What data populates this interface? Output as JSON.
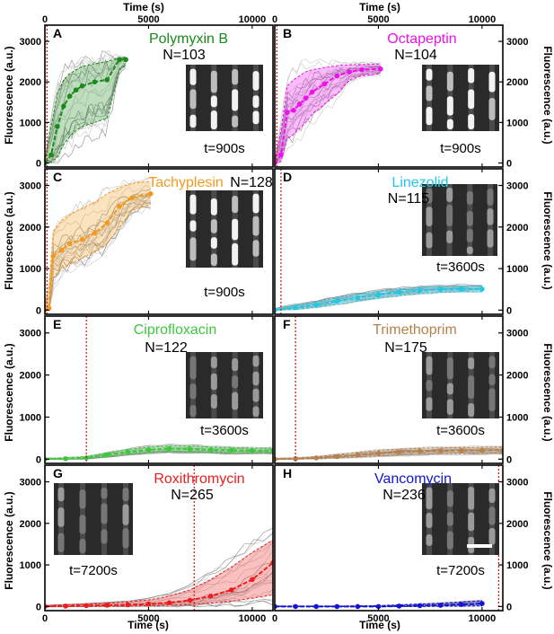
{
  "figure": {
    "x_label": "Time (s)",
    "y_label": "Fluorescence (a.u.)"
  },
  "chart_data": [
    {
      "type": "line",
      "panel": "A",
      "title": "Polymyxin B",
      "n_label": "N=103",
      "color": "#1a8a1a",
      "inset_label": "t=900s",
      "xlim": [
        0,
        11000
      ],
      "ylim": [
        -100,
        3400
      ],
      "treatment_time": 100,
      "x": [
        0,
        300,
        600,
        900,
        1200,
        1500,
        1800,
        2400,
        3000,
        3600,
        3900
      ],
      "series": [
        {
          "role": "mean",
          "values": [
            0,
            200,
            900,
            1400,
            1650,
            1800,
            1900,
            2000,
            2050,
            2550,
            2550
          ]
        },
        {
          "role": "upper",
          "values": [
            50,
            900,
            1700,
            2050,
            2200,
            2300,
            2380,
            2450,
            2500,
            2600,
            2600
          ]
        },
        {
          "role": "lower",
          "values": [
            0,
            20,
            150,
            450,
            650,
            800,
            900,
            1000,
            1100,
            2300,
            2400
          ]
        }
      ],
      "y_ticks": [
        "0",
        "1000",
        "2000",
        "3000"
      ]
    },
    {
      "type": "line",
      "panel": "B",
      "title": "Octapeptin",
      "n_label": "N=104",
      "color": "#ee10ee",
      "inset_label": "t=900s",
      "xlim": [
        0,
        11000
      ],
      "ylim": [
        -100,
        3400
      ],
      "treatment_time": 100,
      "x": [
        0,
        300,
        600,
        900,
        1200,
        1500,
        1800,
        2400,
        3000,
        3600,
        4200,
        5100
      ],
      "series": [
        {
          "role": "mean",
          "values": [
            0,
            200,
            1250,
            1300,
            1450,
            1600,
            1750,
            1950,
            2150,
            2250,
            2300,
            2320
          ]
        },
        {
          "role": "upper",
          "values": [
            50,
            800,
            1900,
            2050,
            2150,
            2250,
            2300,
            2350,
            2400,
            2420,
            2430,
            2440
          ]
        },
        {
          "role": "lower",
          "values": [
            0,
            30,
            600,
            700,
            850,
            1000,
            1200,
            1450,
            1700,
            2050,
            2150,
            2200
          ]
        }
      ],
      "y_ticks": [
        "0",
        "1000",
        "2000",
        "3000"
      ]
    },
    {
      "type": "line",
      "panel": "C",
      "title": "Tachyplesin",
      "n_label": "N=128",
      "color": "#f39a1c",
      "inset_label": "t=900s",
      "xlim": [
        0,
        11000
      ],
      "ylim": [
        -100,
        3400
      ],
      "treatment_time": 100,
      "x": [
        0,
        200,
        400,
        800,
        1200,
        1800,
        2400,
        3000,
        3600,
        4200,
        5100
      ],
      "series": [
        {
          "role": "mean",
          "values": [
            0,
            50,
            1300,
            1450,
            1600,
            1700,
            1850,
            2100,
            2500,
            2700,
            2800
          ]
        },
        {
          "role": "upper",
          "values": [
            80,
            500,
            1900,
            2150,
            2300,
            2450,
            2600,
            2800,
            2950,
            3050,
            3100
          ]
        },
        {
          "role": "lower",
          "values": [
            0,
            10,
            800,
            1000,
            1100,
            1250,
            1400,
            1600,
            2000,
            2400,
            2550
          ]
        }
      ],
      "y_ticks": [
        "0",
        "1000",
        "2000",
        "3000"
      ]
    },
    {
      "type": "line",
      "panel": "D",
      "title": "Linezolid",
      "n_label": "N=115",
      "color": "#1ec8e6",
      "inset_label": "t=3600s",
      "xlim": [
        0,
        11000
      ],
      "ylim": [
        -100,
        3400
      ],
      "treatment_time": 300,
      "x": [
        0,
        1000,
        2000,
        3000,
        4000,
        5000,
        6000,
        7000,
        8000,
        9000,
        10000
      ],
      "series": [
        {
          "role": "mean",
          "values": [
            0,
            60,
            130,
            220,
            300,
            370,
            430,
            480,
            500,
            510,
            510
          ]
        },
        {
          "role": "upper",
          "values": [
            30,
            120,
            200,
            300,
            380,
            450,
            510,
            550,
            570,
            580,
            580
          ]
        },
        {
          "role": "lower",
          "values": [
            0,
            20,
            70,
            140,
            220,
            290,
            350,
            400,
            430,
            440,
            440
          ]
        }
      ],
      "y_ticks": [
        "0",
        "1000",
        "2000",
        "3000"
      ]
    },
    {
      "type": "line",
      "panel": "E",
      "title": "Ciprofloxacin",
      "n_label": "N=122",
      "color": "#3cc83c",
      "inset_label": "t=3600s",
      "xlim": [
        0,
        11000
      ],
      "ylim": [
        -100,
        3400
      ],
      "treatment_time": 2000,
      "x": [
        0,
        1000,
        2000,
        3000,
        4000,
        5000,
        6000,
        7000,
        8000,
        9000,
        10000,
        11000
      ],
      "series": [
        {
          "role": "mean",
          "values": [
            0,
            10,
            30,
            100,
            170,
            220,
            250,
            240,
            220,
            210,
            200,
            200
          ]
        },
        {
          "role": "upper",
          "values": [
            20,
            30,
            60,
            150,
            230,
            290,
            320,
            310,
            290,
            270,
            260,
            260
          ]
        },
        {
          "role": "lower",
          "values": [
            0,
            0,
            10,
            60,
            120,
            160,
            180,
            170,
            160,
            150,
            150,
            150
          ]
        }
      ],
      "y_ticks": [
        "0",
        "1000",
        "2000",
        "3000"
      ]
    },
    {
      "type": "line",
      "panel": "F",
      "title": "Trimethoprim",
      "n_label": "N=175",
      "color": "#b8804a",
      "inset_label": "t=3600s",
      "xlim": [
        0,
        11000
      ],
      "ylim": [
        -100,
        3400
      ],
      "treatment_time": 1000,
      "x": [
        0,
        1000,
        2000,
        3000,
        4000,
        5000,
        6000,
        7000,
        8000,
        9000,
        10000,
        11000
      ],
      "series": [
        {
          "role": "mean",
          "values": [
            0,
            10,
            30,
            60,
            100,
            140,
            170,
            190,
            200,
            205,
            210,
            215
          ]
        },
        {
          "role": "upper",
          "values": [
            20,
            30,
            60,
            110,
            160,
            210,
            240,
            260,
            270,
            280,
            285,
            290
          ]
        },
        {
          "role": "lower",
          "values": [
            0,
            0,
            10,
            30,
            50,
            80,
            100,
            120,
            130,
            135,
            140,
            145
          ]
        }
      ],
      "y_ticks": [
        "0",
        "1000",
        "2000",
        "3000"
      ]
    },
    {
      "type": "line",
      "panel": "G",
      "title": "Roxithromycin",
      "n_label": "N=265",
      "color": "#ee1c1c",
      "inset_label": "t=7200s",
      "xlim": [
        0,
        11000
      ],
      "ylim": [
        -100,
        3400
      ],
      "treatment_time": 7200,
      "x": [
        0,
        1000,
        2000,
        3000,
        4000,
        5000,
        6000,
        7000,
        8000,
        9000,
        10000,
        11000
      ],
      "series": [
        {
          "role": "mean",
          "values": [
            0,
            10,
            20,
            30,
            40,
            60,
            90,
            150,
            250,
            400,
            650,
            1050
          ]
        },
        {
          "role": "upper",
          "values": [
            20,
            40,
            60,
            80,
            110,
            160,
            250,
            400,
            650,
            950,
            1300,
            1600
          ]
        },
        {
          "role": "lower",
          "values": [
            0,
            0,
            0,
            5,
            10,
            20,
            30,
            50,
            80,
            130,
            200,
            280
          ]
        }
      ],
      "x_ticks": [
        "0",
        "5000",
        "10000"
      ],
      "y_ticks": [
        "0",
        "1000",
        "2000",
        "3000"
      ]
    },
    {
      "type": "line",
      "panel": "H",
      "title": "Vancomycin",
      "n_label": "N=236",
      "color": "#1414d2",
      "inset_label": "t=7200s",
      "xlim": [
        0,
        11000
      ],
      "ylim": [
        -100,
        3400
      ],
      "treatment_time": 10800,
      "x": [
        0,
        1000,
        2000,
        3000,
        4000,
        5000,
        6000,
        7000,
        8000,
        9000,
        10000
      ],
      "series": [
        {
          "role": "mean",
          "values": [
            0,
            0,
            0,
            0,
            0,
            0,
            10,
            20,
            30,
            50,
            70
          ]
        },
        {
          "role": "upper",
          "values": [
            10,
            10,
            10,
            10,
            15,
            20,
            40,
            60,
            80,
            110,
            140
          ]
        },
        {
          "role": "lower",
          "values": [
            0,
            0,
            0,
            0,
            0,
            0,
            0,
            0,
            5,
            10,
            15
          ]
        }
      ],
      "x_ticks": [
        "0",
        "5000",
        "10000"
      ],
      "y_ticks": [
        "0",
        "1000",
        "2000",
        "3000"
      ]
    }
  ],
  "top_x_ticks": [
    "0",
    "5000",
    "10000"
  ]
}
